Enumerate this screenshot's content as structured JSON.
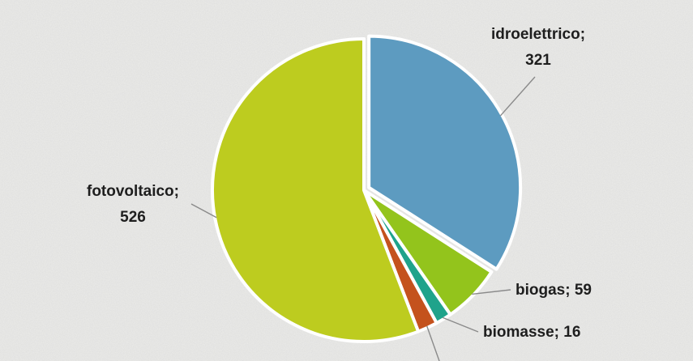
{
  "chart_data": {
    "type": "pie",
    "title": "",
    "slices": [
      {
        "name": "idroelettrico",
        "value": 321,
        "color": "#5d9bc0"
      },
      {
        "name": "biogas",
        "value": 59,
        "color": "#93c41c"
      },
      {
        "name": "biomasse",
        "value": 16,
        "color": "#1fa38b"
      },
      {
        "name": "",
        "value": 20,
        "color": "#c4521d"
      },
      {
        "name": "fotovoltaico",
        "value": 526,
        "color": "#bdcc1f"
      }
    ],
    "labels": {
      "idroelettrico": {
        "line1": "idroelettrico;",
        "line2": "321"
      },
      "biogas": "biogas; 59",
      "biomasse": "biomasse; 16",
      "fotovoltaico": {
        "line1": "fotovoltaico;",
        "line2": "526"
      }
    },
    "start_angle": "12 o'clock",
    "direction": "clockwise",
    "exploded_slice": "idroelettrico",
    "background_color": "#ececea"
  }
}
